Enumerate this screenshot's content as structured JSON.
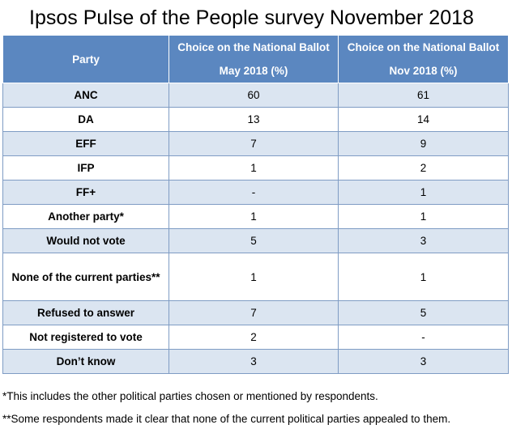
{
  "title": "Ipsos Pulse of the People survey November 2018",
  "table": {
    "headers": {
      "party": "Party",
      "may": "Choice on the National Ballot May 2018 (%)",
      "nov": "Choice on the National Ballot Nov 2018 (%)"
    },
    "rows": [
      {
        "party": "ANC",
        "may": "60",
        "nov": "61"
      },
      {
        "party": "DA",
        "may": "13",
        "nov": "14"
      },
      {
        "party": "EFF",
        "may": "7",
        "nov": "9"
      },
      {
        "party": "IFP",
        "may": "1",
        "nov": "2"
      },
      {
        "party": "FF+",
        "may": "-",
        "nov": "1"
      },
      {
        "party": "Another party*",
        "may": "1",
        "nov": "1"
      },
      {
        "party": "Would not vote",
        "may": "5",
        "nov": "3"
      },
      {
        "party": "None of the current parties**",
        "may": "1",
        "nov": "1"
      },
      {
        "party": "Refused to answer",
        "may": "7",
        "nov": "5"
      },
      {
        "party": "Not registered to vote",
        "may": "2",
        "nov": "-"
      },
      {
        "party": "Don’t know",
        "may": "3",
        "nov": "3"
      }
    ]
  },
  "footnotes": [
    "*This includes the other political parties chosen or mentioned by respondents.",
    "**Some respondents made it clear that none of the current political parties appealed to them."
  ],
  "colors": {
    "header_bg": "#5b87c0",
    "row_shade": "#dbe5f1",
    "border": "#7f9cc4"
  }
}
